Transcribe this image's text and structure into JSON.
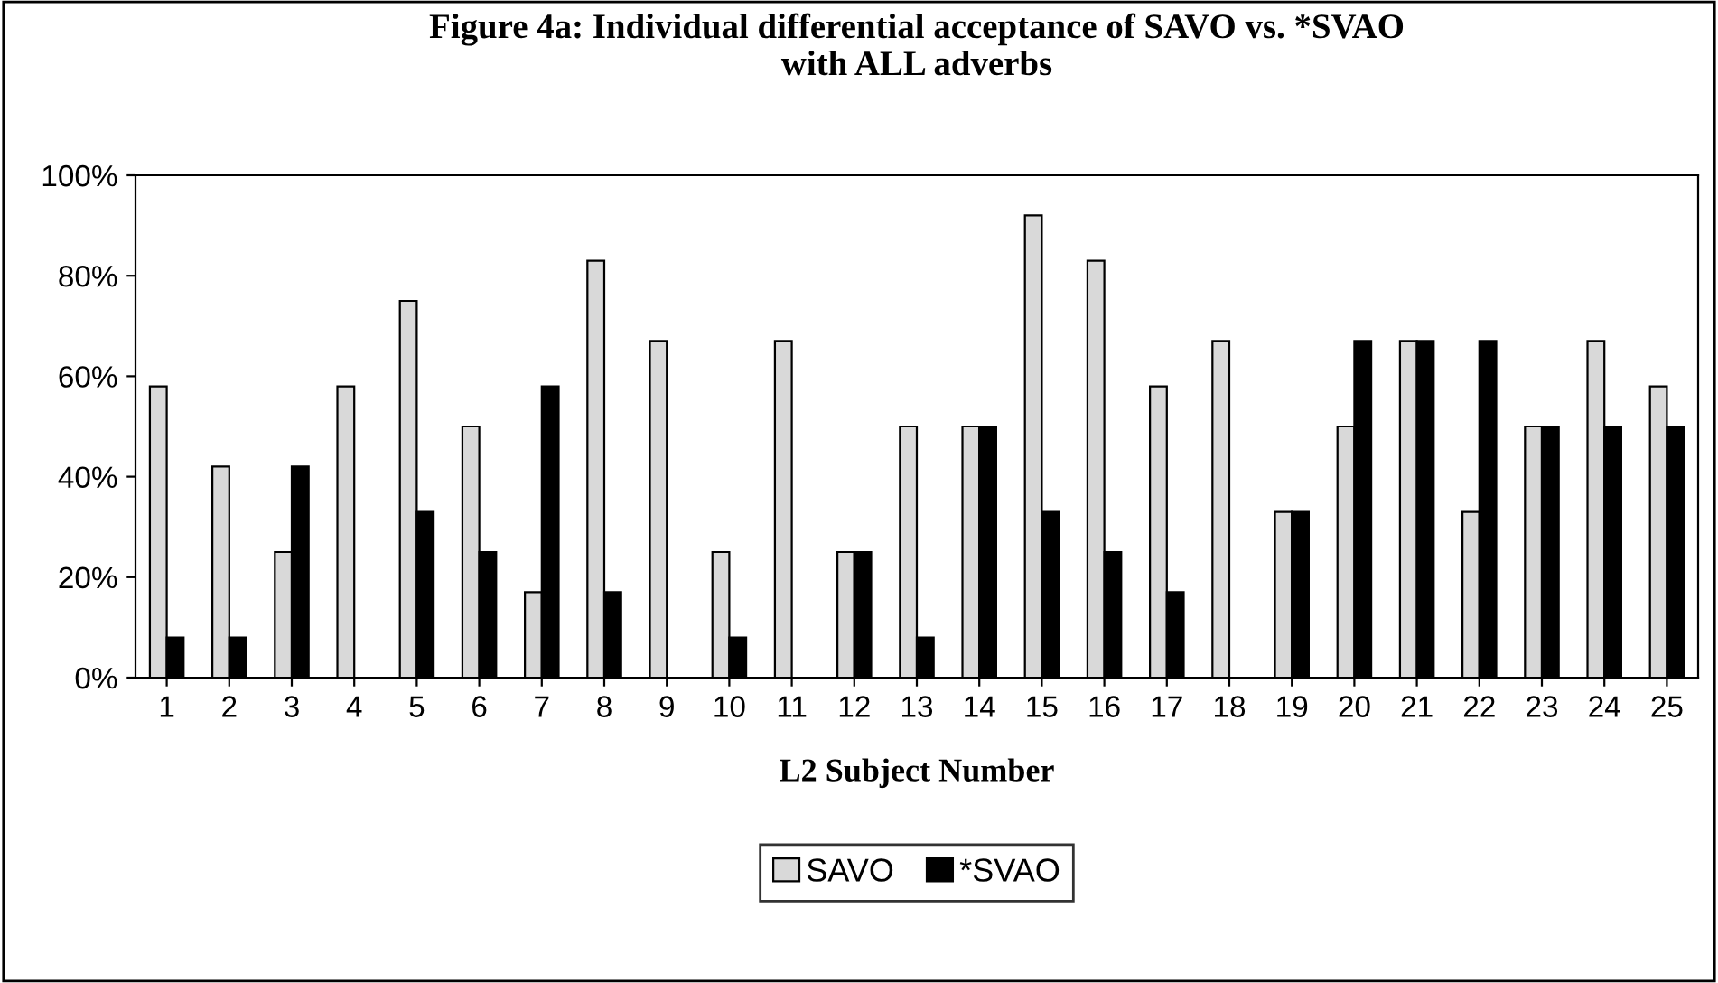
{
  "chart_data": {
    "type": "bar",
    "title": "Figure 4a: Individual differential acceptance of SAVO vs. *SVAO\nwith ALL adverbs",
    "xlabel": "L2 Subject Number",
    "categories": [
      "1",
      "2",
      "3",
      "4",
      "5",
      "6",
      "7",
      "8",
      "9",
      "10",
      "11",
      "12",
      "13",
      "14",
      "15",
      "16",
      "17",
      "18",
      "19",
      "20",
      "21",
      "22",
      "23",
      "24",
      "25"
    ],
    "series": [
      {
        "name": "SAVO",
        "color": "#d9d9d9",
        "values": [
          58,
          42,
          25,
          58,
          75,
          50,
          17,
          83,
          67,
          25,
          67,
          25,
          50,
          50,
          92,
          83,
          58,
          67,
          33,
          50,
          67,
          33,
          50,
          67,
          58
        ]
      },
      {
        "name": "*SVAO",
        "color": "#000000",
        "values": [
          8,
          8,
          42,
          0,
          33,
          25,
          58,
          17,
          0,
          8,
          0,
          25,
          8,
          50,
          33,
          25,
          17,
          0,
          33,
          67,
          67,
          67,
          50,
          50,
          50
        ]
      }
    ],
    "ylim": [
      0,
      100
    ],
    "yticks": [
      {
        "value": 0,
        "label": "0%"
      },
      {
        "value": 20,
        "label": "20%"
      },
      {
        "value": 40,
        "label": "40%"
      },
      {
        "value": 60,
        "label": "60%"
      },
      {
        "value": 80,
        "label": "80%"
      },
      {
        "value": 100,
        "label": "100%"
      }
    ],
    "grid": false,
    "legend": "bottom"
  }
}
